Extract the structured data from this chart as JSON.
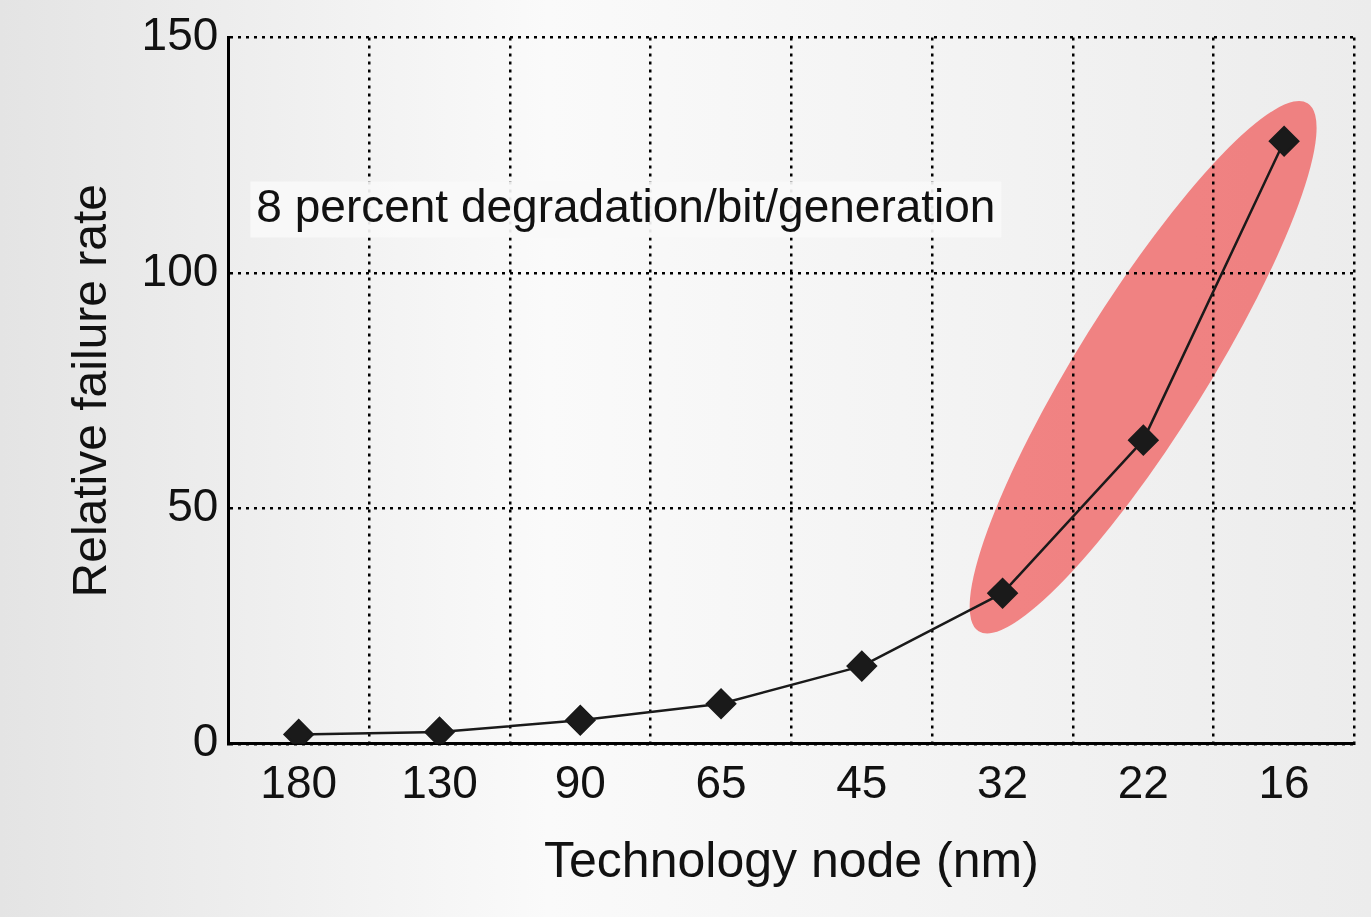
{
  "chart_data": {
    "type": "line",
    "xlabel": "Technology node (nm)",
    "ylabel": "Relative failure rate",
    "categories": [
      "180",
      "130",
      "90",
      "65",
      "45",
      "32",
      "22",
      "16"
    ],
    "values": [
      2,
      2.5,
      5,
      8.5,
      16.5,
      32,
      64.5,
      128
    ],
    "color": "#1a1a1a",
    "marker": "diamond",
    "line_style": "solid",
    "grid": true,
    "legend": false,
    "ylim": [
      0,
      150
    ],
    "yticks": [
      0,
      50,
      100,
      150
    ],
    "annotations": [
      "8 percent degradation/bit/generation"
    ]
  }
}
